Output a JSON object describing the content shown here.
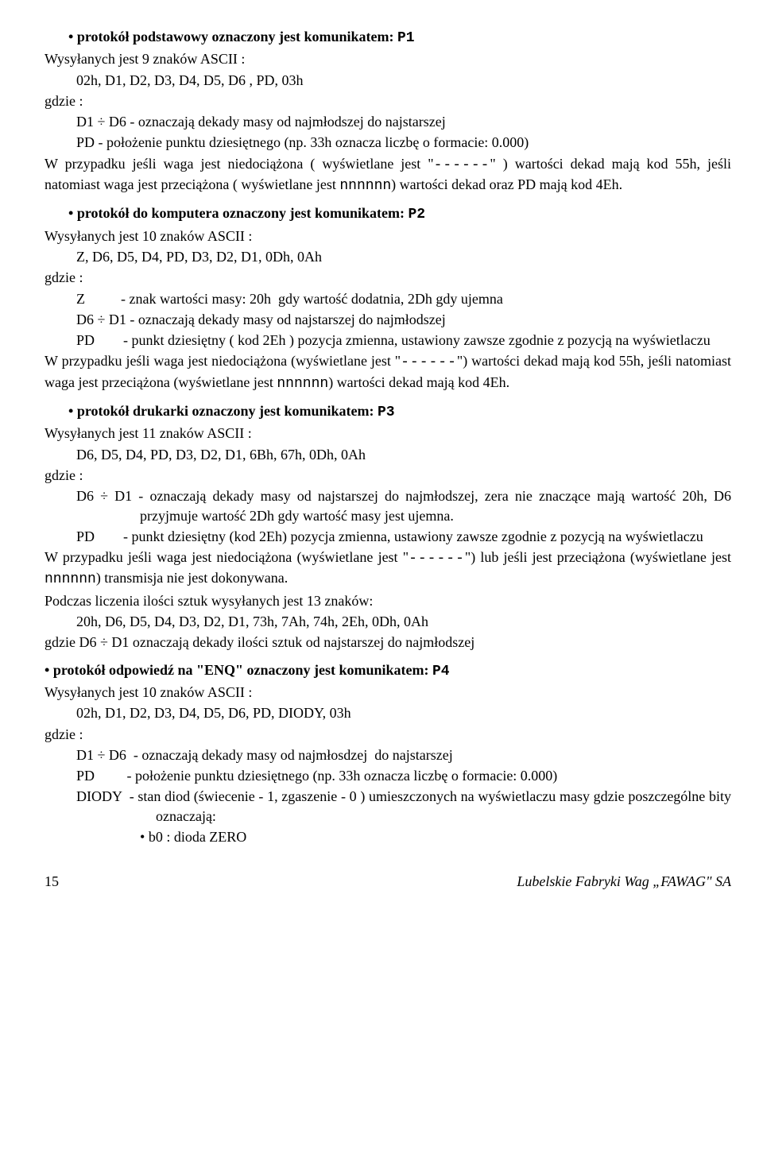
{
  "p1": {
    "title_pre": "protokół podstawowy oznaczony jest komunikatem: ",
    "title_code": "P1",
    "l1": "Wysyłanych jest 9 znaków ASCII :",
    "l2": "02h, D1, D2, D3, D4, D5, D6 , PD, 03h",
    "gdzie": "gdzie :",
    "d1d6": "D1 ÷ D6 - oznaczają dekady masy od najmłodszej do najstarszej",
    "pd": "PD - położenie punktu dziesiętnego (np. 33h oznacza liczbę o formacie: 0.000)",
    "para_a": "W przypadku jeśli waga jest niedociążona ( wyświetlane jest \"",
    "dash": "------",
    "para_b": "\" ) wartości dekad mają kod  55h, jeśli natomiast waga jest przeciążona ( wyświetlane jest ",
    "nnn": "nnnnnn",
    "para_c": ") wartości dekad oraz PD mają kod 4Eh."
  },
  "p2": {
    "title_pre": "protokół do komputera oznaczony jest komunikatem: ",
    "title_code": "P2",
    "l1": "Wysyłanych jest 10 znaków ASCII :",
    "l2": "Z, D6, D5, D4, PD, D3, D2, D1, 0Dh, 0Ah",
    "gdzie": "gdzie :",
    "z": "Z          - znak wartości masy: 20h  gdy wartość dodatnia, 2Dh gdy ujemna",
    "d6d1": "D6 ÷ D1 - oznaczają dekady masy od najstarszej do najmłodszej",
    "pd": "PD        - punkt dziesiętny ( kod 2Eh ) pozycja zmienna, ustawiony zawsze zgodnie z pozycją na wyświetlaczu",
    "para_a": "W przypadku jeśli waga jest niedociążona (wyświetlane jest \"",
    "dash": "------",
    "para_b": "\") wartości dekad mają kod 55h, jeśli natomiast waga jest przeciążona (wyświetlane jest ",
    "nnn": "nnnnnn",
    "para_c": ") wartości dekad mają kod 4Eh."
  },
  "p3": {
    "title_pre": "protokół drukarki oznaczony jest komunikatem: ",
    "title_code": "P3",
    "l1": "Wysyłanych jest 11 znaków ASCII :",
    "l2": "D6, D5, D4, PD, D3, D2, D1, 6Bh, 67h, 0Dh, 0Ah",
    "gdzie": "gdzie :",
    "d6d1": "D6 ÷ D1 - oznaczają dekady masy od najstarszej do najmłodszej, zera nie znaczące mają wartość 20h, D6 przyjmuje wartość 2Dh gdy wartość masy jest ujemna.",
    "pd": "PD        - punkt dziesiętny (kod 2Eh) pozycja zmienna, ustawiony zawsze zgodnie z pozycją na wyświetlaczu",
    "para_a": "W przypadku jeśli waga jest niedociążona (wyświetlane jest \"",
    "dash": "------",
    "para_b": "\") lub jeśli jest przeciążona (wyświetlane jest  ",
    "nnn": "nnnnnn",
    "para_c": ") transmisja nie jest dokonywana.",
    "count1": "Podczas liczenia ilości sztuk wysyłanych jest 13 znaków:",
    "count2": "20h, D6, D5, D4, D3, D2, D1, 73h, 7Ah, 74h, 2Eh, 0Dh, 0Ah",
    "count3": "gdzie D6 ÷ D1 oznaczają dekady ilości sztuk od najstarszej do najmłodszej"
  },
  "p4": {
    "title_pre": "protokół odpowiedź na \"ENQ\" oznaczony jest komunikatem: ",
    "title_code": "P4",
    "l1": "Wysyłanych jest 10 znaków ASCII :",
    "l2": "02h, D1, D2, D3, D4, D5, D6, PD, DIODY, 03h",
    "gdzie": "gdzie :",
    "d1d6": "D1 ÷ D6  - oznaczają dekady masy od najmłosdzej  do najstarszej",
    "pd": "PD         - położenie punktu dziesiętnego (np. 33h oznacza liczbę o formacie: 0.000)",
    "diody": "DIODY  - stan diod (świecenie - 1, zgaszenie - 0 ) umieszczonych na wyświetlaczu masy gdzie poszczególne bity oznaczają:",
    "b0": "b0 : dioda ZERO"
  },
  "footer": {
    "page": "15",
    "company": "Lubelskie Fabryki Wag „FAWAG\" SA"
  }
}
